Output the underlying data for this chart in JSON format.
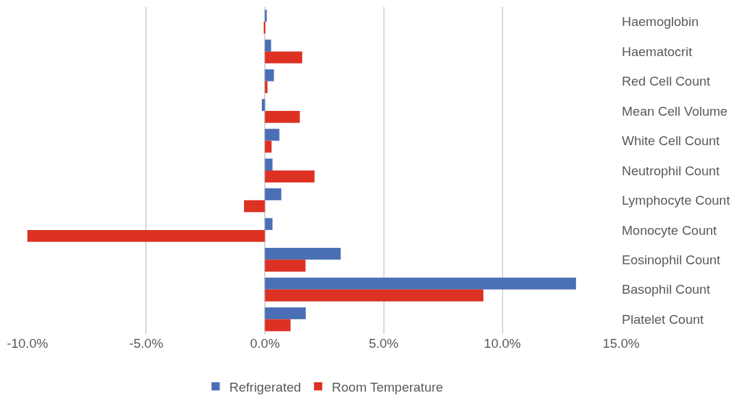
{
  "chart_data": {
    "type": "bar",
    "orientation": "horizontal",
    "categories": [
      "Haemoglobin",
      "Haematocrit",
      "Red Cell Count",
      "Mean Cell Volume",
      "White Cell Count",
      "Neutrophil Count",
      "Lymphocyte Count",
      "Monocyte Count",
      "Eosinophil Count",
      "Basophil Count",
      "Platelet Count"
    ],
    "series": [
      {
        "name": "Refrigerated",
        "color": "#4a6fb5",
        "values": [
          0.08,
          0.26,
          0.38,
          -0.13,
          0.61,
          0.32,
          0.69,
          0.32,
          3.19,
          13.1,
          1.72
        ]
      },
      {
        "name": "Room Temperature",
        "color": "#dd3124",
        "values": [
          -0.05,
          1.57,
          0.11,
          1.47,
          0.28,
          2.09,
          -0.88,
          -10.0,
          1.71,
          9.2,
          1.08
        ]
      }
    ],
    "xlim": [
      -10,
      15
    ],
    "xticks": [
      {
        "value": -10,
        "label": "-10.0%"
      },
      {
        "value": -5,
        "label": "-5.0%"
      },
      {
        "value": 0,
        "label": "0.0%"
      },
      {
        "value": 5,
        "label": "5.0%"
      },
      {
        "value": 10,
        "label": "10.0%"
      },
      {
        "value": 15,
        "label": "15.0%"
      }
    ],
    "grid": "x",
    "legend": "bottom"
  }
}
